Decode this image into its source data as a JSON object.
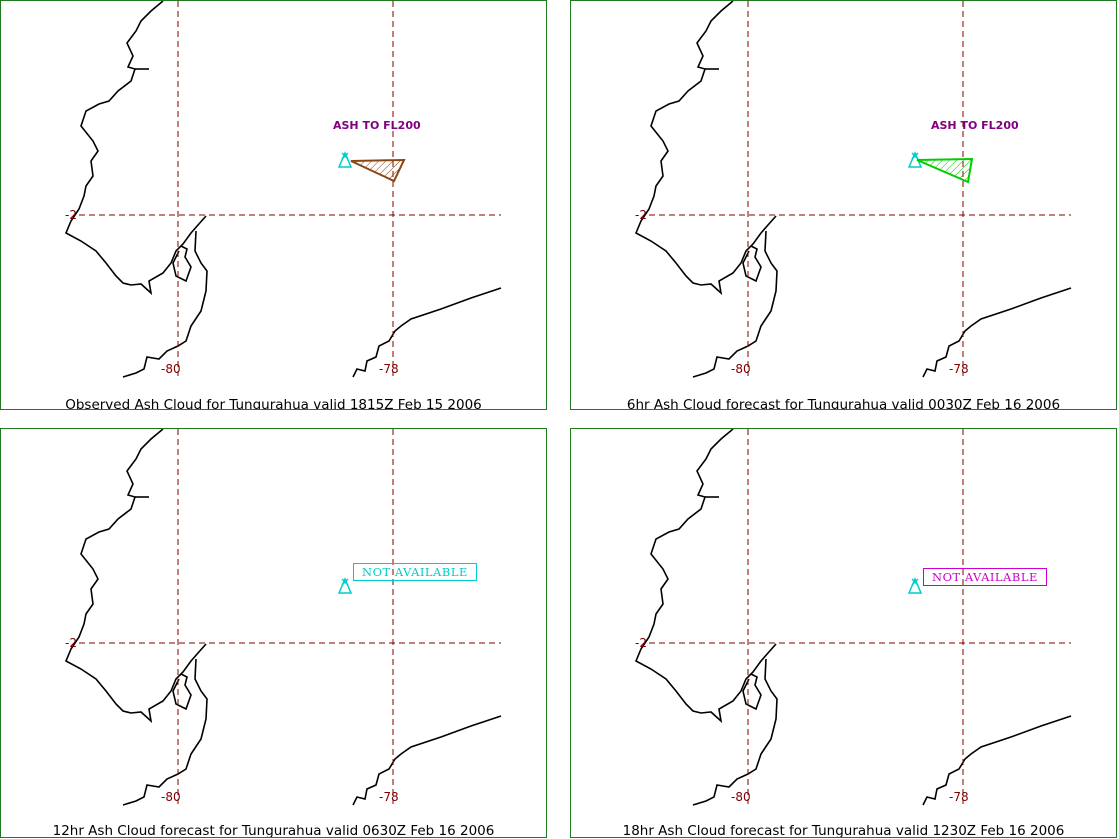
{
  "panels": [
    {
      "caption": "Observed Ash Cloud for Tungurahua valid 1815Z Feb 15 2006",
      "annotation": "ASH TO FL200",
      "status": "",
      "polygon_color": "#8b4513",
      "volcano_color": "#00cccc"
    },
    {
      "caption": "6hr Ash Cloud forecast for Tungurahua valid 0030Z Feb 16 2006",
      "annotation": "ASH TO FL200",
      "status": "",
      "polygon_color": "#00cc00",
      "volcano_color": "#00cccc"
    },
    {
      "caption": "12hr Ash Cloud forecast for Tungurahua valid 0630Z Feb 16 2006",
      "annotation": "",
      "status": "NOT AVAILABLE",
      "status_color": "#00cccc",
      "volcano_color": "#00cccc"
    },
    {
      "caption": "18hr Ash Cloud forecast for Tungurahua valid 1230Z Feb 16 2006",
      "annotation": "",
      "status": "NOT AVAILABLE",
      "status_color": "#cc00cc",
      "volcano_color": "#00cccc"
    }
  ],
  "grid": {
    "lat_label": "-2",
    "lon_labels": [
      "-80",
      "-78"
    ]
  },
  "colors": {
    "grid": "#800000",
    "coast": "#000000",
    "frame": "#1f7a1f"
  }
}
